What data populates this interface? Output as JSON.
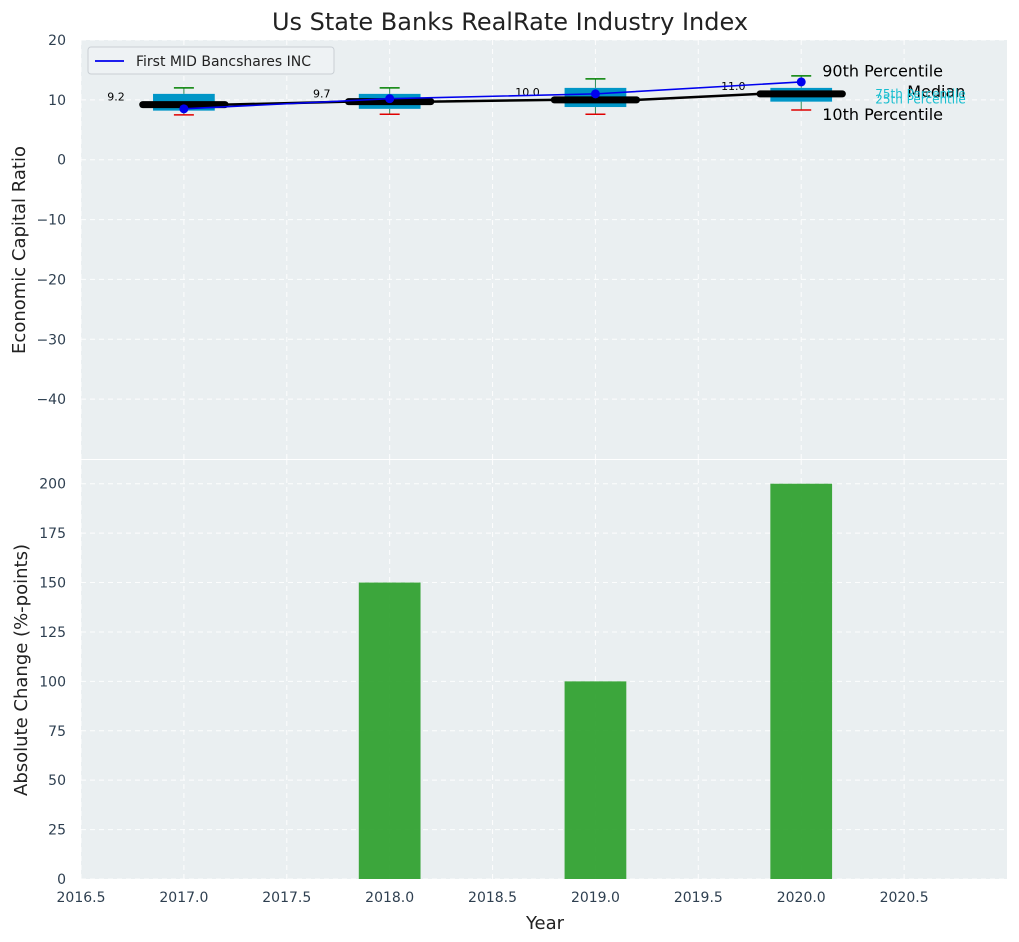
{
  "chart_data": [
    {
      "type": "box",
      "title": "Us State Banks RealRate Industry Index",
      "ylabel": "Economic Capital Ratio",
      "ylim": [
        -50,
        20
      ],
      "yticks": [
        20,
        10,
        0,
        -10,
        -20,
        -30,
        -40
      ],
      "ytick_labels": [
        "20",
        "10",
        "0",
        "−10",
        "−20",
        "−30",
        "−40"
      ],
      "xlim": [
        2016.5,
        2021.0
      ],
      "categories": [
        2017,
        2018,
        2019,
        2020
      ],
      "boxes": [
        {
          "x": 2017,
          "p10": 7.5,
          "q1": 8.2,
          "median": 9.2,
          "q3": 11.0,
          "p90": 12.0,
          "label": "9.2"
        },
        {
          "x": 2018,
          "p10": 7.6,
          "q1": 8.5,
          "median": 9.7,
          "q3": 11.0,
          "p90": 12.0,
          "label": "9.7"
        },
        {
          "x": 2019,
          "p10": 7.6,
          "q1": 8.8,
          "median": 10.0,
          "q3": 12.0,
          "p90": 13.5,
          "label": "10.0"
        },
        {
          "x": 2020,
          "p10": 8.3,
          "q1": 9.7,
          "median": 11.0,
          "q3": 12.0,
          "p90": 14.0,
          "label": "11.0"
        }
      ],
      "series": [
        {
          "name": "First MID Bancshares INC",
          "color": "#0000ee",
          "x": [
            2017,
            2018,
            2019,
            2020
          ],
          "values": [
            8.5,
            10.2,
            11.0,
            13.0
          ]
        }
      ],
      "median_line": {
        "x": [
          2016.8,
          2017.2,
          2017.8,
          2018.2,
          2018.8,
          2019.2,
          2019.8,
          2020.2
        ],
        "values": [
          9.2,
          9.2,
          9.7,
          9.7,
          10.0,
          10.0,
          11.0,
          11.0
        ]
      },
      "legend": "upper-left",
      "annotations": {
        "p90": "90th Percentile",
        "median": "Median",
        "p10": "10th Percentile",
        "q3": "75th Percentile",
        "q1": "25th Percentile"
      }
    },
    {
      "type": "bar",
      "xlabel": "Year",
      "ylabel": "Absolute Change (%-points)",
      "ylim": [
        0,
        212
      ],
      "yticks": [
        0,
        25,
        50,
        75,
        100,
        125,
        150,
        175,
        200
      ],
      "xlim": [
        2016.5,
        2021.0
      ],
      "xticks": [
        2016.5,
        2017.0,
        2017.5,
        2018.0,
        2018.5,
        2019.0,
        2019.5,
        2020.0,
        2020.5
      ],
      "xtick_labels": [
        "2016.5",
        "2017.0",
        "2017.5",
        "2018.0",
        "2018.5",
        "2019.0",
        "2019.5",
        "2020.0",
        "2020.5"
      ],
      "categories": [
        2017,
        2018,
        2019,
        2020
      ],
      "values": [
        0,
        150,
        100,
        200
      ],
      "bar_width": 0.3,
      "color": "#2ca02c"
    }
  ]
}
